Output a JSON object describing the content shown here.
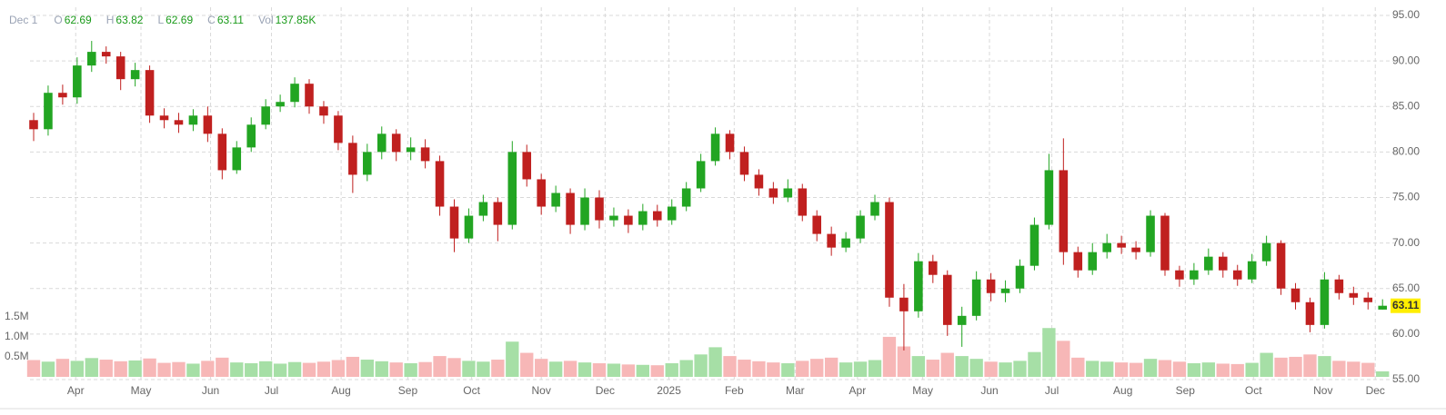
{
  "chart_data": {
    "type": "candlestick",
    "open": [
      83.5,
      82.5,
      86.5,
      86,
      89.5,
      91,
      90.5,
      88,
      89,
      84,
      83.5,
      83,
      84,
      82,
      78,
      80.5,
      83,
      85,
      85.5,
      87.5,
      85,
      84,
      81,
      77.5,
      80,
      82,
      80,
      80.5,
      79,
      74,
      70.5,
      73,
      74.5,
      72,
      80,
      77,
      74,
      75.5,
      72,
      75,
      72.5,
      73,
      72,
      73.5,
      72.5,
      74,
      76,
      79,
      82,
      80,
      77.5,
      76,
      75,
      76,
      73,
      71,
      69.5,
      70.5,
      73,
      74.5,
      64,
      62.5,
      68,
      66.5,
      61,
      62,
      66,
      64.5,
      65,
      67.5,
      72,
      78,
      69,
      67,
      69,
      70,
      69.5,
      69,
      73,
      67,
      66,
      67,
      68.5,
      67,
      66,
      68,
      70,
      65,
      63.5,
      61,
      66,
      64.5,
      64,
      62.69
    ],
    "high": [
      84.3,
      87.3,
      87.4,
      90.4,
      92.2,
      91.6,
      91,
      89.8,
      89.5,
      84.8,
      84.3,
      84.7,
      85,
      82.6,
      81.2,
      83.8,
      85.8,
      86.3,
      88.2,
      88,
      85.6,
      84.5,
      81.8,
      80.9,
      82.8,
      82.5,
      81.6,
      81.4,
      79.6,
      74.8,
      73.8,
      75.3,
      75,
      81.2,
      80.8,
      77.6,
      76.3,
      76,
      76,
      75.8,
      73.9,
      73.7,
      74.3,
      74.2,
      74.8,
      76.7,
      79.8,
      82.7,
      82.4,
      80.6,
      78.1,
      76.7,
      77,
      76.5,
      73.6,
      71.8,
      71.2,
      73.6,
      75.3,
      75,
      65.5,
      68.9,
      68.7,
      67,
      63,
      66.9,
      66.7,
      65.9,
      68.2,
      72.8,
      79.8,
      81.5,
      69.6,
      70,
      71,
      70.8,
      70.2,
      73.6,
      73.3,
      67.5,
      67.8,
      69.4,
      69,
      67.6,
      68.8,
      70.8,
      70.3,
      65.6,
      64,
      66.8,
      66.5,
      65.2,
      64.6,
      63.82
    ],
    "low": [
      81.2,
      81.8,
      85.2,
      85.3,
      88.8,
      89.7,
      86.8,
      87.2,
      83.2,
      82.6,
      82.1,
      82.3,
      81.1,
      77,
      77.6,
      80,
      82.5,
      84.4,
      84.9,
      84.2,
      83.1,
      80.2,
      75.5,
      76.8,
      79.2,
      79,
      79.1,
      78.2,
      73,
      69,
      70,
      72.4,
      70.2,
      71.5,
      76.2,
      73.1,
      73.4,
      71,
      71.4,
      71.6,
      71.8,
      71.1,
      71.4,
      71.8,
      72,
      73.5,
      75.6,
      78.5,
      79.2,
      76.8,
      75.2,
      74.3,
      74.5,
      72.4,
      70.2,
      68.6,
      69,
      70,
      72.5,
      63,
      58.2,
      61.8,
      65.6,
      59.8,
      58.6,
      61.5,
      63.6,
      63.5,
      64.5,
      67,
      71.5,
      67.6,
      66.2,
      66.5,
      68.3,
      68.8,
      68.2,
      68.5,
      66.4,
      65.2,
      65.4,
      66.5,
      66.2,
      65.3,
      65.6,
      67.5,
      64.3,
      62.7,
      60.2,
      60.6,
      63.8,
      63.2,
      62.7,
      62.69
    ],
    "close": [
      82.5,
      86.5,
      86,
      89.5,
      91,
      90.5,
      88,
      89,
      84,
      83.5,
      83,
      84,
      82,
      78,
      80.5,
      83,
      85,
      85.5,
      87.5,
      85,
      84,
      81,
      77.5,
      80,
      82,
      80,
      80.5,
      79,
      74,
      70.5,
      73,
      74.5,
      72,
      80,
      77,
      74,
      75.5,
      72,
      75,
      72.5,
      73,
      72,
      73.5,
      72.5,
      74,
      76,
      79,
      82,
      80,
      77.5,
      76,
      75,
      76,
      73,
      71,
      69.5,
      70.5,
      73,
      74.5,
      64,
      62.5,
      68,
      66.5,
      61,
      62,
      66,
      64.5,
      65,
      67.5,
      72,
      78,
      69,
      67,
      69,
      70,
      69.5,
      69,
      73,
      67,
      66,
      67,
      68.5,
      67,
      66,
      68,
      70,
      65,
      63.5,
      61,
      66,
      64.5,
      64,
      63.5,
      63.11
    ],
    "volume": [
      420000,
      380000,
      450000,
      400000,
      470000,
      430000,
      390000,
      410000,
      460000,
      350000,
      370000,
      330000,
      400000,
      480000,
      360000,
      340000,
      390000,
      330000,
      370000,
      350000,
      380000,
      420000,
      500000,
      430000,
      390000,
      360000,
      340000,
      370000,
      520000,
      470000,
      400000,
      380000,
      430000,
      880000,
      600000,
      450000,
      380000,
      400000,
      360000,
      340000,
      330000,
      310000,
      300000,
      290000,
      340000,
      420000,
      560000,
      740000,
      520000,
      430000,
      390000,
      360000,
      340000,
      400000,
      450000,
      480000,
      360000,
      380000,
      420000,
      1000000,
      760000,
      520000,
      430000,
      600000,
      520000,
      450000,
      380000,
      360000,
      400000,
      620000,
      1220000,
      900000,
      480000,
      400000,
      380000,
      360000,
      350000,
      450000,
      420000,
      380000,
      340000,
      360000,
      330000,
      320000,
      350000,
      600000,
      480000,
      500000,
      560000,
      520000,
      400000,
      380000,
      350000,
      137850
    ],
    "up_color": "#22a522",
    "down_color": "#c0201f",
    "volume_up_color": "#a6dfa6",
    "volume_down_color": "#f7b7b7",
    "xlim": [
      -0.25,
      93.3
    ],
    "xticks": [
      {
        "value": 2.9,
        "label": "Apr"
      },
      {
        "value": 7.4,
        "label": "May"
      },
      {
        "value": 12.2,
        "label": "Jun"
      },
      {
        "value": 16.4,
        "label": "Jul"
      },
      {
        "value": 21.2,
        "label": "Aug"
      },
      {
        "value": 25.8,
        "label": "Sep"
      },
      {
        "value": 30.2,
        "label": "Oct"
      },
      {
        "value": 35,
        "label": "Nov"
      },
      {
        "value": 39.4,
        "label": "Dec"
      },
      {
        "value": 43.8,
        "label": "2025"
      },
      {
        "value": 48.3,
        "label": "Feb"
      },
      {
        "value": 52.5,
        "label": "Mar"
      },
      {
        "value": 56.8,
        "label": "Apr"
      },
      {
        "value": 61.3,
        "label": "May"
      },
      {
        "value": 65.9,
        "label": "Jun"
      },
      {
        "value": 70.2,
        "label": "Jul"
      },
      {
        "value": 75.1,
        "label": "Aug"
      },
      {
        "value": 79.4,
        "label": "Sep"
      },
      {
        "value": 84.1,
        "label": "Oct"
      },
      {
        "value": 88.9,
        "label": "Nov"
      },
      {
        "value": 92.5,
        "label": "Dec"
      }
    ],
    "ylim": [
      55,
      95
    ],
    "yticks": [
      {
        "value": 55,
        "label": "55.00"
      },
      {
        "value": 60,
        "label": "60.00"
      },
      {
        "value": 65,
        "label": "65.00"
      },
      {
        "value": 70,
        "label": "70.00"
      },
      {
        "value": 75,
        "label": "75.00"
      },
      {
        "value": 80,
        "label": "80.00"
      },
      {
        "value": 85,
        "label": "85.00"
      },
      {
        "value": 90,
        "label": "90.00"
      },
      {
        "value": 95,
        "label": "95.00"
      }
    ],
    "y2lim": [
      0,
      9100000
    ],
    "y2ticks": [
      {
        "value": 500000,
        "label": "0.5M"
      },
      {
        "value": 1000000,
        "label": "1.0M"
      },
      {
        "value": 1500000,
        "label": "1.5M"
      }
    ],
    "grid": true,
    "crosshair": {
      "date": "Dec 1",
      "fields": [
        {
          "label": "O",
          "value": 62.69
        },
        {
          "label": "H",
          "value": 63.82
        },
        {
          "label": "L",
          "value": 62.69
        },
        {
          "label": "C",
          "value": 63.11
        },
        {
          "label": "Vol",
          "value": "137.85K"
        }
      ]
    }
  }
}
